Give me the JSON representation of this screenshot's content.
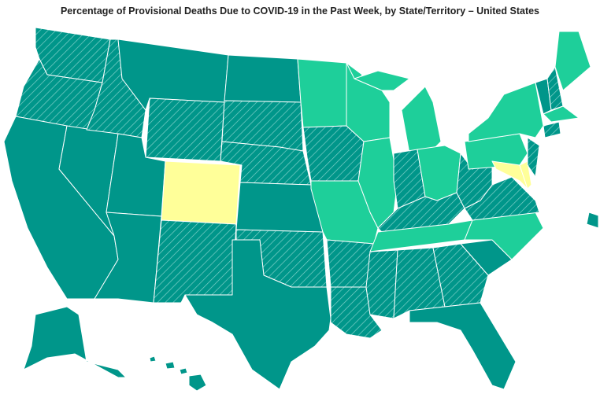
{
  "header": {
    "title": "Percentage of Provisional Deaths Due to COVID-19 in the Past Week, by State/Territory – United States"
  }
}
